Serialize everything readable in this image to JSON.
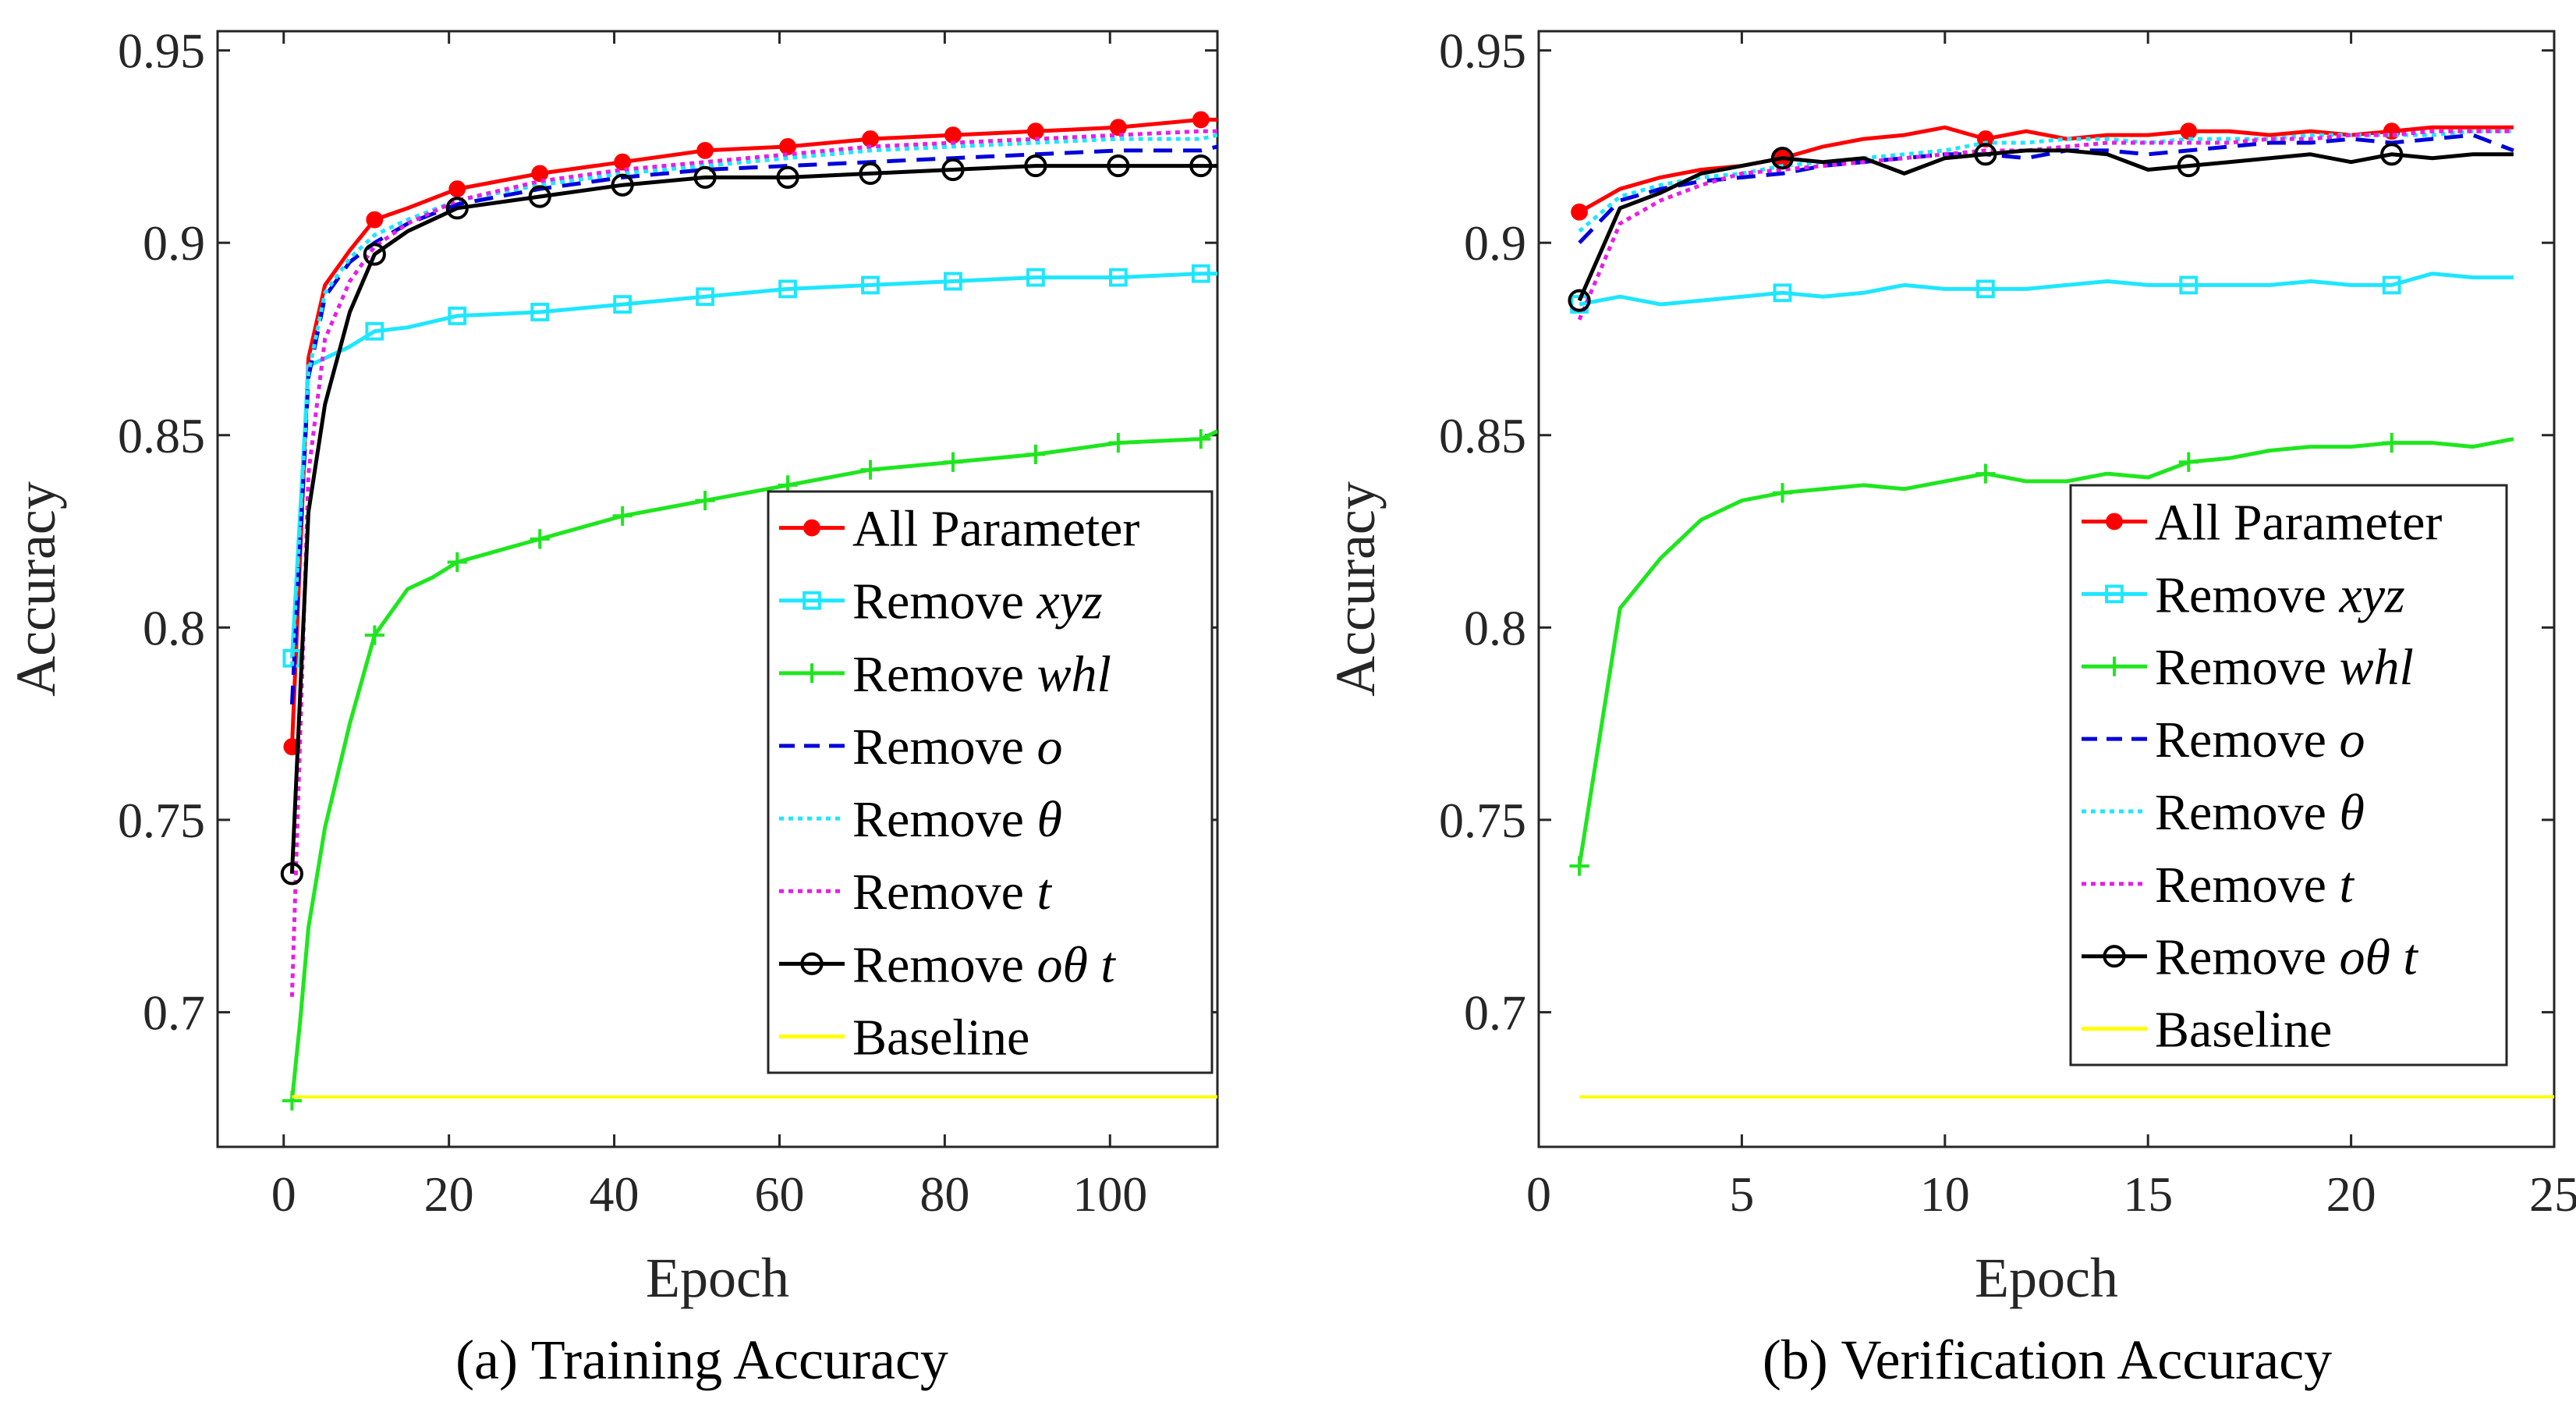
{
  "chart_data": [
    {
      "type": "line",
      "caption": "(a) Training Accuracy",
      "xlabel": "Epoch",
      "ylabel": "Accuracy",
      "xlim": [
        -8,
        113
      ],
      "ylim": [
        0.665,
        0.955
      ],
      "xticks": [
        0,
        20,
        40,
        60,
        80,
        100
      ],
      "yticks": [
        0.7,
        0.75,
        0.8,
        0.85,
        0.9,
        0.95
      ],
      "xtick_labels": [
        "0",
        "20",
        "40",
        "60",
        "80",
        "100"
      ],
      "ytick_labels": [
        "0.7",
        "0.75",
        "0.8",
        "0.85",
        "0.9",
        "0.95"
      ],
      "legend_position": "bottom-right",
      "series": [
        {
          "name": "All Parameter",
          "label_plain": "All Parameter",
          "label_italic": "",
          "color": "#ff0000",
          "style": "solid",
          "marker": "dot",
          "x": [
            1,
            3,
            5,
            8,
            11,
            15,
            21,
            31,
            41,
            51,
            61,
            71,
            81,
            91,
            101,
            111,
            113
          ],
          "y": [
            0.769,
            0.87,
            0.889,
            0.898,
            0.906,
            0.909,
            0.914,
            0.918,
            0.921,
            0.924,
            0.925,
            0.927,
            0.928,
            0.929,
            0.93,
            0.932,
            0.932
          ],
          "marker_x": [
            1,
            11,
            21,
            31,
            41,
            51,
            61,
            71,
            81,
            91,
            101,
            111
          ]
        },
        {
          "name": "Remove xyz",
          "label_plain": "Remove ",
          "label_italic": "xyz",
          "color": "#1ee6ff",
          "style": "solid",
          "marker": "square",
          "x": [
            1,
            3,
            5,
            8,
            11,
            15,
            21,
            31,
            41,
            51,
            61,
            71,
            81,
            91,
            101,
            111,
            113
          ],
          "y": [
            0.792,
            0.868,
            0.87,
            0.873,
            0.877,
            0.878,
            0.881,
            0.882,
            0.884,
            0.886,
            0.888,
            0.889,
            0.89,
            0.891,
            0.891,
            0.892,
            0.892
          ],
          "marker_x": [
            1,
            11,
            21,
            31,
            41,
            51,
            61,
            71,
            81,
            91,
            101,
            111
          ]
        },
        {
          "name": "Remove whl",
          "label_plain": "Remove ",
          "label_italic": "whl",
          "color": "#1ee61e",
          "style": "solid",
          "marker": "plus",
          "x": [
            1,
            2,
            3,
            5,
            8,
            11,
            15,
            18,
            21,
            26,
            31,
            41,
            51,
            61,
            71,
            81,
            91,
            101,
            111,
            113
          ],
          "y": [
            0.677,
            0.698,
            0.722,
            0.748,
            0.775,
            0.798,
            0.81,
            0.813,
            0.817,
            0.82,
            0.823,
            0.829,
            0.833,
            0.837,
            0.841,
            0.843,
            0.845,
            0.848,
            0.849,
            0.851
          ],
          "marker_x": [
            1,
            11,
            21,
            31,
            41,
            51,
            61,
            71,
            81,
            91,
            101,
            111
          ]
        },
        {
          "name": "Remove o",
          "label_plain": "Remove ",
          "label_italic": "o",
          "color": "#0000dc",
          "style": "dashed",
          "marker": "none",
          "x": [
            1,
            3,
            5,
            8,
            11,
            15,
            21,
            31,
            41,
            51,
            61,
            71,
            81,
            91,
            101,
            111,
            113
          ],
          "y": [
            0.78,
            0.865,
            0.886,
            0.895,
            0.9,
            0.905,
            0.91,
            0.914,
            0.917,
            0.919,
            0.92,
            0.921,
            0.922,
            0.923,
            0.924,
            0.924,
            0.925
          ]
        },
        {
          "name": "Remove θ",
          "label_plain": "Remove ",
          "label_italic": "θ",
          "color": "#1ee6ff",
          "style": "dotted",
          "marker": "none",
          "x": [
            1,
            3,
            5,
            8,
            11,
            15,
            21,
            31,
            41,
            51,
            61,
            71,
            81,
            91,
            101,
            111,
            113
          ],
          "y": [
            0.79,
            0.866,
            0.887,
            0.896,
            0.902,
            0.906,
            0.911,
            0.915,
            0.918,
            0.92,
            0.922,
            0.924,
            0.925,
            0.926,
            0.927,
            0.927,
            0.928
          ]
        },
        {
          "name": "Remove t",
          "label_plain": "Remove ",
          "label_italic": "t",
          "color": "#e61ee6",
          "style": "dotted",
          "marker": "none",
          "x": [
            1,
            3,
            5,
            8,
            11,
            15,
            21,
            31,
            41,
            51,
            61,
            71,
            81,
            91,
            101,
            111,
            113
          ],
          "y": [
            0.704,
            0.84,
            0.875,
            0.89,
            0.899,
            0.905,
            0.911,
            0.916,
            0.919,
            0.921,
            0.923,
            0.925,
            0.926,
            0.927,
            0.928,
            0.929,
            0.929
          ]
        },
        {
          "name": "Remove oθ t",
          "label_plain": "Remove ",
          "label_italic": "oθ t",
          "color": "#000000",
          "style": "solid",
          "marker": "circle",
          "x": [
            1,
            3,
            5,
            8,
            11,
            15,
            21,
            31,
            41,
            51,
            61,
            71,
            81,
            91,
            101,
            111,
            113
          ],
          "y": [
            0.736,
            0.83,
            0.858,
            0.882,
            0.897,
            0.903,
            0.909,
            0.912,
            0.915,
            0.917,
            0.917,
            0.918,
            0.919,
            0.92,
            0.92,
            0.92,
            0.92
          ],
          "marker_x": [
            1,
            11,
            21,
            31,
            41,
            51,
            61,
            71,
            81,
            91,
            101,
            111
          ]
        },
        {
          "name": "Baseline",
          "label_plain": "Baseline",
          "label_italic": "",
          "color": "#ffff00",
          "style": "solid",
          "marker": "none",
          "x": [
            1,
            113
          ],
          "y": [
            0.678,
            0.678
          ]
        }
      ]
    },
    {
      "type": "line",
      "caption": "(b) Verification Accuracy",
      "xlabel": "Epoch",
      "ylabel": "Accuracy",
      "xlim": [
        0,
        25
      ],
      "ylim": [
        0.665,
        0.955
      ],
      "xticks": [
        0,
        5,
        10,
        15,
        20,
        25
      ],
      "yticks": [
        0.7,
        0.75,
        0.8,
        0.85,
        0.9,
        0.95
      ],
      "xtick_labels": [
        "0",
        "5",
        "10",
        "15",
        "20",
        "25"
      ],
      "ytick_labels": [
        "0.7",
        "0.75",
        "0.8",
        "0.85",
        "0.9",
        "0.95"
      ],
      "legend_position": "right",
      "series": [
        {
          "name": "All Parameter",
          "label_plain": "All Parameter",
          "label_italic": "",
          "color": "#ff0000",
          "style": "solid",
          "marker": "dot",
          "x": [
            1,
            2,
            3,
            4,
            5,
            6,
            7,
            8,
            9,
            10,
            11,
            12,
            13,
            14,
            15,
            16,
            17,
            18,
            19,
            20,
            21,
            22,
            23,
            24
          ],
          "y": [
            0.908,
            0.914,
            0.917,
            0.919,
            0.92,
            0.922,
            0.925,
            0.927,
            0.928,
            0.93,
            0.927,
            0.929,
            0.927,
            0.928,
            0.928,
            0.929,
            0.929,
            0.928,
            0.929,
            0.928,
            0.929,
            0.93,
            0.93,
            0.93
          ],
          "marker_x": [
            1,
            6,
            11,
            16,
            21
          ]
        },
        {
          "name": "Remove xyz",
          "label_plain": "Remove ",
          "label_italic": "xyz",
          "color": "#1ee6ff",
          "style": "solid",
          "marker": "square",
          "x": [
            1,
            2,
            3,
            4,
            5,
            6,
            7,
            8,
            9,
            10,
            11,
            12,
            13,
            14,
            15,
            16,
            17,
            18,
            19,
            20,
            21,
            22,
            23,
            24
          ],
          "y": [
            0.884,
            0.886,
            0.884,
            0.885,
            0.886,
            0.887,
            0.886,
            0.887,
            0.889,
            0.888,
            0.888,
            0.888,
            0.889,
            0.89,
            0.889,
            0.889,
            0.889,
            0.889,
            0.89,
            0.889,
            0.889,
            0.892,
            0.891,
            0.891
          ],
          "marker_x": [
            1,
            6,
            11,
            16,
            21
          ]
        },
        {
          "name": "Remove whl",
          "label_plain": "Remove ",
          "label_italic": "whl",
          "color": "#1ee61e",
          "style": "solid",
          "marker": "plus",
          "x": [
            1,
            2,
            3,
            4,
            5,
            6,
            7,
            8,
            9,
            10,
            11,
            12,
            13,
            14,
            15,
            16,
            17,
            18,
            19,
            20,
            21,
            22,
            23,
            24
          ],
          "y": [
            0.738,
            0.805,
            0.818,
            0.828,
            0.833,
            0.835,
            0.836,
            0.837,
            0.836,
            0.838,
            0.84,
            0.838,
            0.838,
            0.84,
            0.839,
            0.843,
            0.844,
            0.846,
            0.847,
            0.847,
            0.848,
            0.848,
            0.847,
            0.849
          ],
          "marker_x": [
            1,
            6,
            11,
            16,
            21
          ]
        },
        {
          "name": "Remove o",
          "label_plain": "Remove ",
          "label_italic": "o",
          "color": "#0000dc",
          "style": "dashed",
          "marker": "none",
          "x": [
            1,
            2,
            3,
            4,
            5,
            6,
            7,
            8,
            9,
            10,
            11,
            12,
            13,
            14,
            15,
            16,
            17,
            18,
            19,
            20,
            21,
            22,
            23,
            24
          ],
          "y": [
            0.9,
            0.911,
            0.914,
            0.916,
            0.917,
            0.918,
            0.92,
            0.921,
            0.922,
            0.923,
            0.923,
            0.922,
            0.924,
            0.924,
            0.923,
            0.924,
            0.925,
            0.926,
            0.926,
            0.927,
            0.926,
            0.927,
            0.928,
            0.924
          ]
        },
        {
          "name": "Remove θ",
          "label_plain": "Remove ",
          "label_italic": "θ",
          "color": "#1ee6ff",
          "style": "dotted",
          "marker": "none",
          "x": [
            1,
            2,
            3,
            4,
            5,
            6,
            7,
            8,
            9,
            10,
            11,
            12,
            13,
            14,
            15,
            16,
            17,
            18,
            19,
            20,
            21,
            22,
            23,
            24
          ],
          "y": [
            0.903,
            0.912,
            0.915,
            0.917,
            0.918,
            0.92,
            0.921,
            0.922,
            0.923,
            0.924,
            0.926,
            0.926,
            0.927,
            0.927,
            0.926,
            0.927,
            0.927,
            0.927,
            0.928,
            0.928,
            0.928,
            0.928,
            0.929,
            0.929
          ]
        },
        {
          "name": "Remove t",
          "label_plain": "Remove ",
          "label_italic": "t",
          "color": "#e61ee6",
          "style": "dotted",
          "marker": "none",
          "x": [
            1,
            2,
            3,
            4,
            5,
            6,
            7,
            8,
            9,
            10,
            11,
            12,
            13,
            14,
            15,
            16,
            17,
            18,
            19,
            20,
            21,
            22,
            23,
            24
          ],
          "y": [
            0.88,
            0.905,
            0.911,
            0.915,
            0.918,
            0.919,
            0.92,
            0.921,
            0.922,
            0.923,
            0.924,
            0.924,
            0.925,
            0.926,
            0.926,
            0.926,
            0.926,
            0.927,
            0.927,
            0.928,
            0.928,
            0.929,
            0.929,
            0.929
          ]
        },
        {
          "name": "Remove oθ t",
          "label_plain": "Remove ",
          "label_italic": "oθ t",
          "color": "#000000",
          "style": "solid",
          "marker": "circle",
          "x": [
            1,
            2,
            3,
            4,
            5,
            6,
            7,
            8,
            9,
            10,
            11,
            12,
            13,
            14,
            15,
            16,
            17,
            18,
            19,
            20,
            21,
            22,
            23,
            24
          ],
          "y": [
            0.885,
            0.909,
            0.913,
            0.918,
            0.92,
            0.922,
            0.921,
            0.922,
            0.918,
            0.922,
            0.923,
            0.924,
            0.924,
            0.923,
            0.919,
            0.92,
            0.921,
            0.922,
            0.923,
            0.921,
            0.923,
            0.922,
            0.923,
            0.923
          ],
          "marker_x": [
            1,
            6,
            11,
            16,
            21
          ]
        },
        {
          "name": "Baseline",
          "label_plain": "Baseline",
          "label_italic": "",
          "color": "#ffff00",
          "style": "solid",
          "marker": "none",
          "x": [
            1,
            25
          ],
          "y": [
            0.678,
            0.678
          ]
        }
      ]
    }
  ]
}
